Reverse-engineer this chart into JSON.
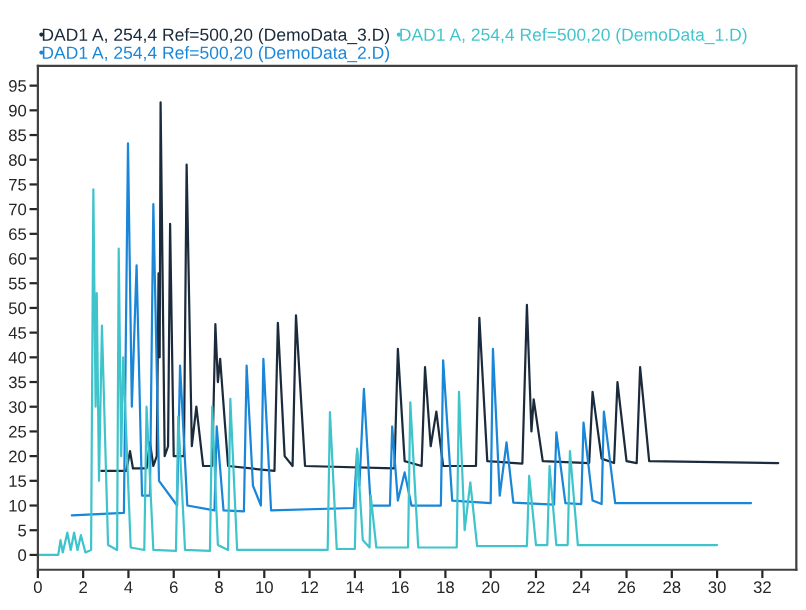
{
  "chart_data": {
    "type": "line",
    "legend": "top left",
    "grid": false,
    "marker": "none",
    "line_style": "solid",
    "xlim": [
      0,
      33.5
    ],
    "ylim": [
      -3,
      99
    ],
    "xticks": [
      0,
      2,
      4,
      6,
      8,
      10,
      12,
      14,
      16,
      18,
      20,
      22,
      24,
      26,
      28,
      30,
      32
    ],
    "yticks": [
      0,
      5,
      10,
      15,
      20,
      25,
      30,
      35,
      40,
      45,
      50,
      55,
      60,
      65,
      70,
      75,
      80,
      85,
      90,
      95
    ],
    "series": [
      {
        "name": "DAD1 A, 254,4 Ref=500,20 (DemoData_3.D)",
        "color": "#1c2b3c",
        "x": [
          2.8,
          3.9,
          4.07,
          4.2,
          4.8,
          4.95,
          5.1,
          5.25,
          5.33,
          5.38,
          5.42,
          5.6,
          5.75,
          5.84,
          6.0,
          6.45,
          6.57,
          6.8,
          7.0,
          7.3,
          7.7,
          7.84,
          7.95,
          8.05,
          8.4,
          10.45,
          10.6,
          10.9,
          11.25,
          11.4,
          11.8,
          15.75,
          15.9,
          16.2,
          16.95,
          17.1,
          17.35,
          17.6,
          17.9,
          19.35,
          19.5,
          19.85,
          21.4,
          21.6,
          21.8,
          21.9,
          22.3,
          24.35,
          24.5,
          24.9,
          25.45,
          25.6,
          26.0,
          26.45,
          26.6,
          27.0,
          32.7
        ],
        "values": [
          17,
          17,
          21,
          17.5,
          17.5,
          22.8,
          18,
          20,
          57,
          40,
          91.6,
          20,
          22,
          67,
          20,
          20,
          79,
          22,
          30,
          18,
          18,
          46.7,
          35,
          39.7,
          18,
          17,
          47,
          20,
          18,
          48.5,
          18,
          17.5,
          41.7,
          19,
          18,
          38,
          22,
          29,
          18,
          18,
          48,
          19,
          18.5,
          50.6,
          25,
          31.5,
          19,
          18.6,
          33,
          19.5,
          18.6,
          35,
          19,
          18.6,
          38,
          19,
          18.6
        ]
      },
      {
        "name": "DAD1 A, 254,4 Ref=500,20 (DemoData_2.D)",
        "color": "#1a86d8",
        "x": [
          1.5,
          3.8,
          3.98,
          4.15,
          4.36,
          4.6,
          4.95,
          5.1,
          5.35,
          6.15,
          6.28,
          6.6,
          7.8,
          7.9,
          8.2,
          9.1,
          9.22,
          9.5,
          9.85,
          9.96,
          10.3,
          13.95,
          14.1,
          14.2,
          14.4,
          14.7,
          15.55,
          15.65,
          15.9,
          16.2,
          16.5,
          17.8,
          17.9,
          18.3,
          20.0,
          20.1,
          20.4,
          20.7,
          21.0,
          22.8,
          22.9,
          23.3,
          24.0,
          24.1,
          24.5,
          24.9,
          25.0,
          25.5,
          31.5
        ],
        "values": [
          8,
          8.5,
          83.3,
          30,
          58.6,
          12,
          12,
          71,
          15,
          10,
          38.3,
          10,
          9,
          26,
          9,
          8.8,
          38.3,
          14,
          10,
          39.7,
          9,
          9.5,
          21,
          14,
          33.6,
          10,
          10,
          26,
          11,
          16.7,
          10,
          10,
          39.4,
          11,
          10.5,
          41.7,
          12,
          22.8,
          10.6,
          10.2,
          24.8,
          10.5,
          10.3,
          26.8,
          11,
          10.3,
          29,
          10.5,
          10.5
        ]
      },
      {
        "name": "DAD1 A, 254,4 Ref=500,20 (DemoData_1.D)",
        "color": "#40c4cc",
        "x": [
          0,
          0.9,
          1.0,
          1.1,
          1.3,
          1.45,
          1.6,
          1.75,
          1.9,
          2.1,
          2.35,
          2.45,
          2.55,
          2.6,
          2.7,
          2.83,
          3.1,
          3.5,
          3.57,
          3.68,
          3.77,
          4.1,
          4.7,
          4.8,
          5.1,
          6.1,
          6.2,
          6.5,
          7.6,
          7.7,
          7.95,
          8.4,
          8.5,
          8.8,
          12.8,
          12.9,
          13.2,
          14.0,
          14.1,
          14.35,
          14.65,
          14.7,
          14.95,
          16.35,
          16.45,
          16.8,
          18.5,
          18.6,
          18.85,
          19.1,
          19.4,
          21.6,
          21.7,
          22.0,
          22.5,
          22.6,
          22.9,
          23.4,
          23.5,
          23.85,
          30.0
        ],
        "values": [
          0,
          0,
          3,
          0.5,
          4.5,
          1,
          4.5,
          1,
          4,
          0.5,
          1,
          74,
          30,
          53,
          15,
          46.4,
          2,
          1,
          62,
          20,
          40,
          1.5,
          1,
          30,
          1,
          0.8,
          28,
          1,
          0.8,
          30,
          2,
          1,
          31.6,
          1,
          1,
          28.9,
          1.2,
          1.2,
          21.5,
          3,
          1.5,
          12,
          1.5,
          1.5,
          30.9,
          1.5,
          1.5,
          33,
          5,
          14.7,
          1.8,
          1.8,
          16,
          2,
          2,
          18,
          2,
          2,
          21,
          2,
          2
        ]
      }
    ]
  }
}
